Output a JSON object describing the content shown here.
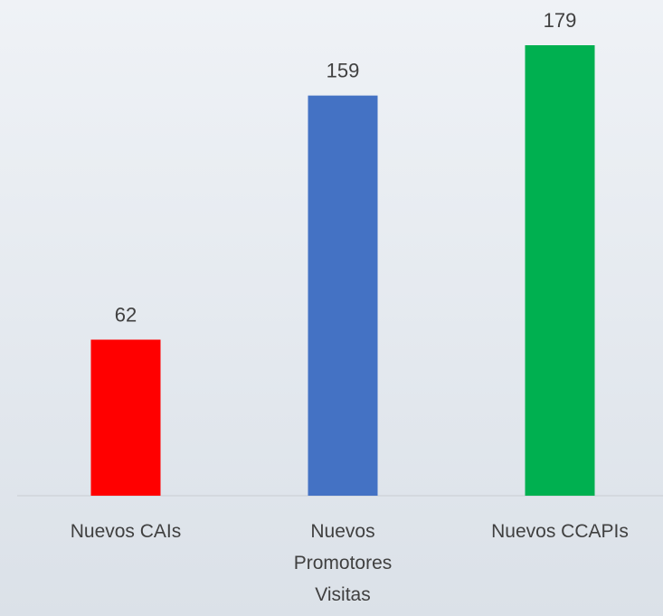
{
  "chart_data": {
    "type": "bar",
    "categories": [
      "Nuevos CAIs",
      "Nuevos Promotores Visitas",
      "Nuevos CCAPIs"
    ],
    "values": [
      62,
      159,
      179
    ],
    "colors": [
      "#ff0000",
      "#4472c4",
      "#00b050"
    ]
  }
}
